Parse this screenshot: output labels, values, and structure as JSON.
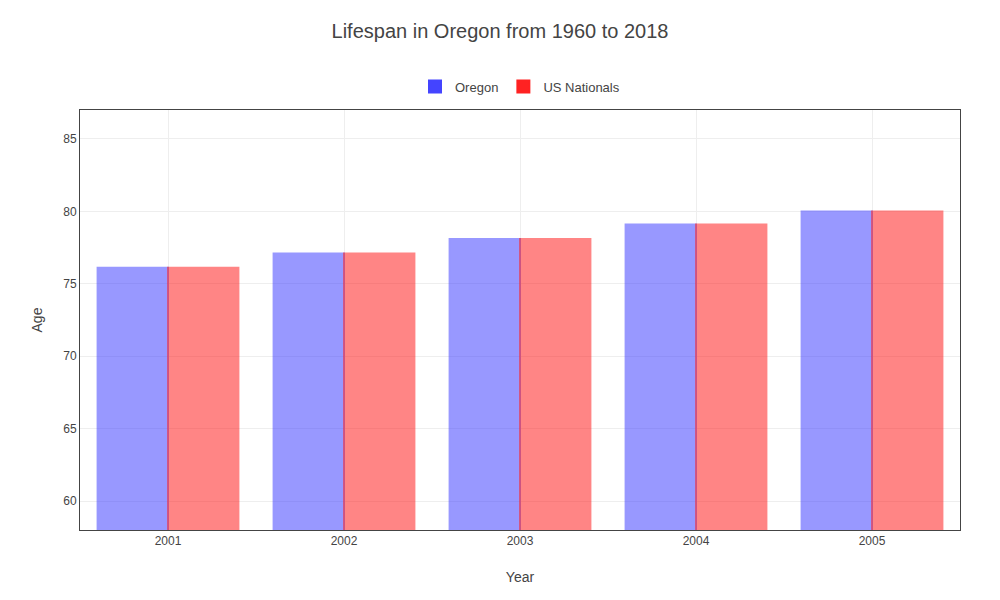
{
  "chart_data": {
    "type": "bar",
    "title": "Lifespan in Oregon from 1960 to 2018",
    "xlabel": "Year",
    "ylabel": "Age",
    "categories": [
      "2001",
      "2002",
      "2003",
      "2004",
      "2005"
    ],
    "series": [
      {
        "name": "Oregon",
        "color": "#4444ff",
        "values": [
          76.1,
          77.1,
          78.1,
          79.1,
          80.0
        ]
      },
      {
        "name": "US Nationals",
        "color": "#ff2222",
        "values": [
          76.1,
          77.1,
          78.1,
          79.1,
          80.0
        ]
      }
    ],
    "ylim": [
      58,
      87
    ],
    "yticks": [
      60,
      65,
      70,
      75,
      80,
      85
    ],
    "grid": true,
    "legend": "upper center"
  }
}
